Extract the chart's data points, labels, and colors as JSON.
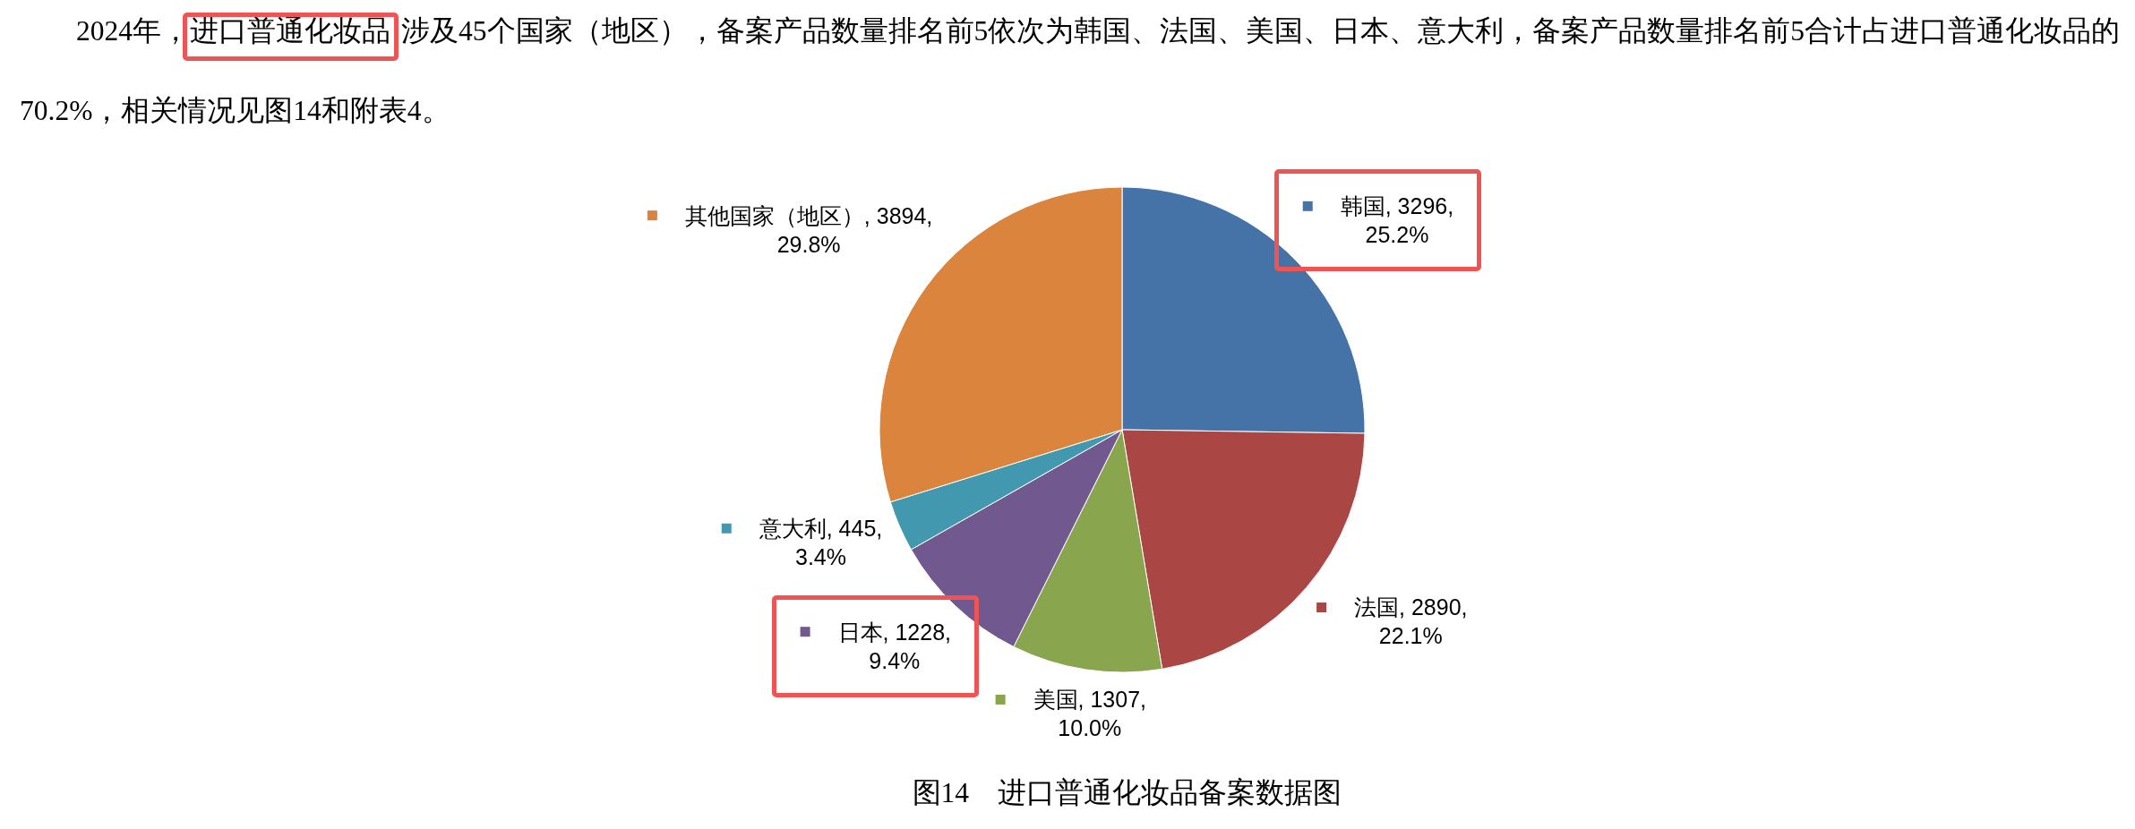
{
  "chart_data": {
    "type": "pie",
    "title": "图14    进口普通化妆品备案数据图",
    "annotations": [
      "2024年，进口普通化妆品涉及45个国家（地区），备案产品数量排名前5依次为韩国、法国、美国、日本、意大利，备案产品数量排名前5合计占进口普通化妆品的70.2%，相关情况见图14和附表4。"
    ],
    "categories": [
      "韩国",
      "法国",
      "美国",
      "日本",
      "意大利",
      "其他国家（地区）"
    ],
    "values": [
      3296,
      2890,
      1307,
      1228,
      445,
      3894
    ],
    "colors": [
      "#4572a7",
      "#aa4643",
      "#89a54e",
      "#71588f",
      "#4198af",
      "#db843d"
    ],
    "value_labels": [
      "3296, 25.2%",
      "2890, 22.1%",
      "1307, 10.0%",
      "1228, 9.4%",
      "445, 3.4%",
      "3894, 29.8%"
    ],
    "legend": true
  }
}
